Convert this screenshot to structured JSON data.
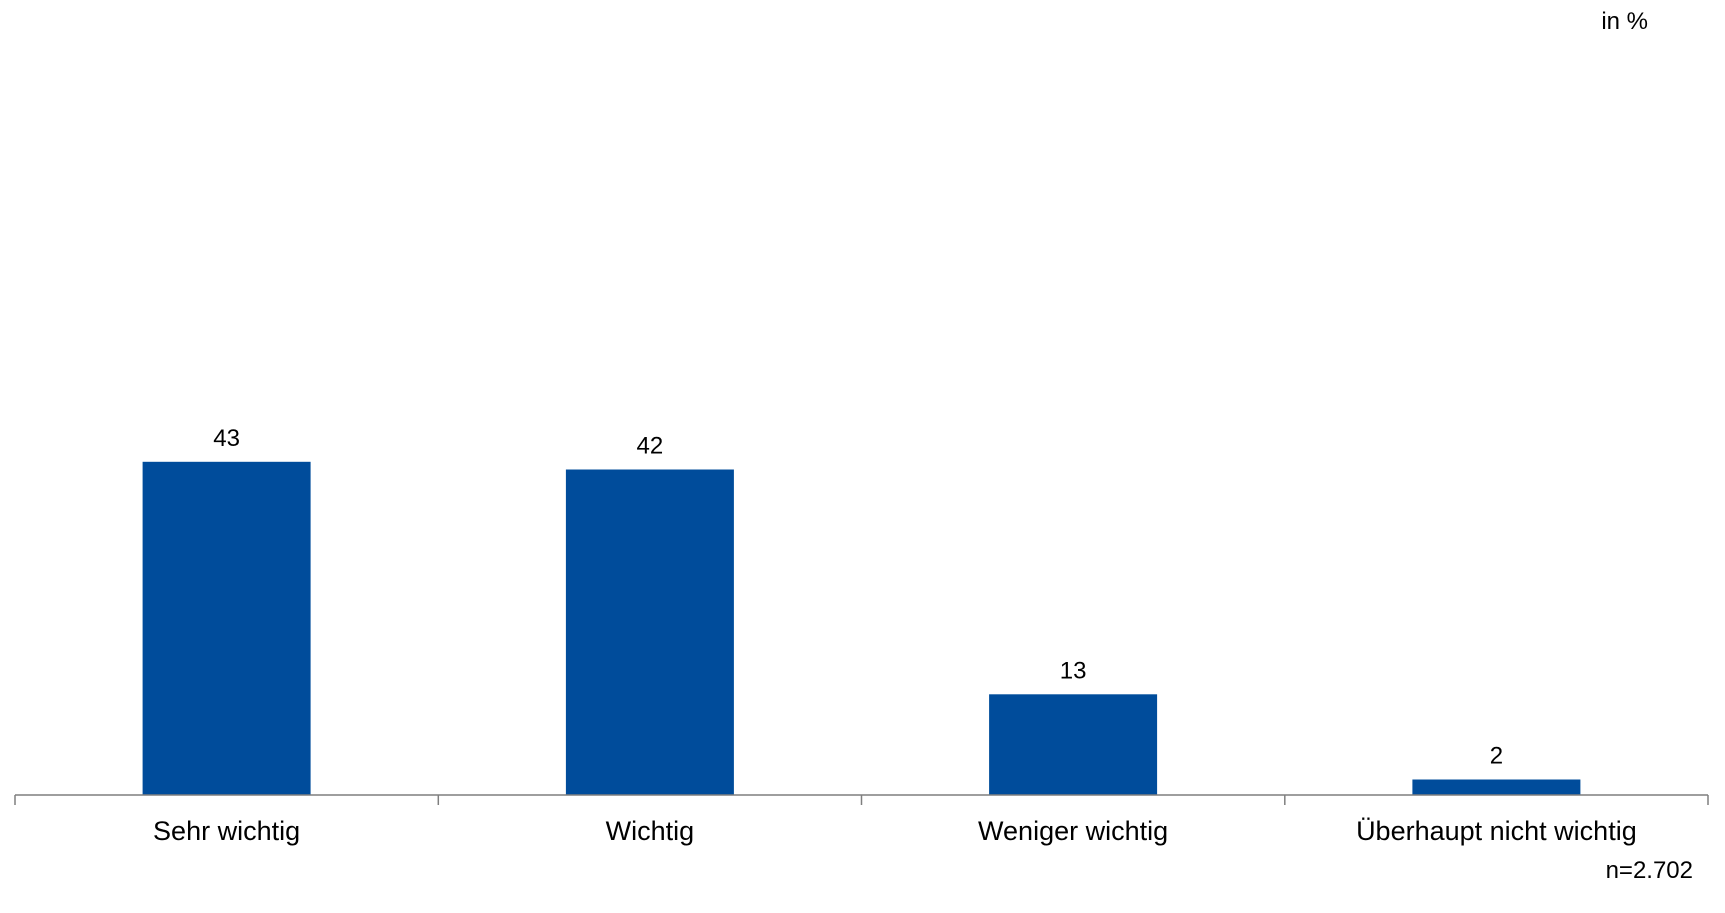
{
  "chart_data": {
    "type": "bar",
    "unit": "in %",
    "note": "n=2.702",
    "categories": [
      "Sehr wichtig",
      "Wichtig",
      "Weniger wichtig",
      "Überhaupt nicht wichtig"
    ],
    "values": [
      43,
      42,
      13,
      2
    ],
    "data_labels": [
      "43",
      "42",
      "13",
      "2"
    ],
    "ylim": [
      0,
      100
    ],
    "bar_color": "#004C9B",
    "axis_color": "#7F7F7F",
    "grid": false,
    "legend": "none"
  }
}
